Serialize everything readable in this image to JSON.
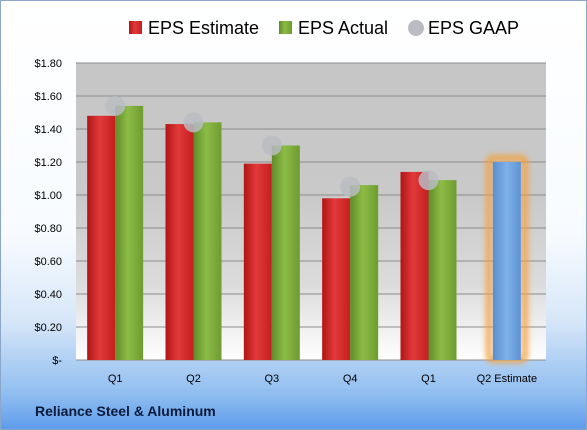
{
  "company": "Reliance Steel & Aluminum",
  "chart_data": {
    "type": "bar",
    "title": "",
    "xlabel": "",
    "ylabel": "",
    "ylim": [
      0,
      1.8
    ],
    "yticks": [
      {
        "value": 0,
        "label": "$-"
      },
      {
        "value": 0.2,
        "label": "$0.20"
      },
      {
        "value": 0.4,
        "label": "$0.40"
      },
      {
        "value": 0.6,
        "label": "$0.60"
      },
      {
        "value": 0.8,
        "label": "$0.80"
      },
      {
        "value": 1.0,
        "label": "$1.00"
      },
      {
        "value": 1.2,
        "label": "$1.20"
      },
      {
        "value": 1.4,
        "label": "$1.40"
      },
      {
        "value": 1.6,
        "label": "$1.60"
      },
      {
        "value": 1.8,
        "label": "$1.80"
      }
    ],
    "categories": [
      "Q1",
      "Q2",
      "Q3",
      "Q4",
      "Q1",
      "Q2 Estimate"
    ],
    "grid": true,
    "legend_position": "top",
    "series": [
      {
        "name": "EPS Estimate",
        "type": "bar",
        "color": "#d42a2a",
        "values": [
          1.48,
          1.43,
          1.19,
          0.98,
          1.14,
          null
        ]
      },
      {
        "name": "EPS Actual",
        "type": "bar",
        "color": "#7aa83a",
        "values": [
          1.54,
          1.44,
          1.3,
          1.06,
          1.09,
          null
        ]
      },
      {
        "name": "EPS GAAP",
        "type": "scatter",
        "color": "#b9bcc2",
        "values": [
          1.54,
          1.44,
          1.3,
          1.05,
          1.09,
          null
        ]
      },
      {
        "name": "Q2 Estimate",
        "type": "bar",
        "color": "#6a9fde",
        "values": [
          null,
          null,
          null,
          null,
          null,
          1.2
        ]
      }
    ]
  }
}
